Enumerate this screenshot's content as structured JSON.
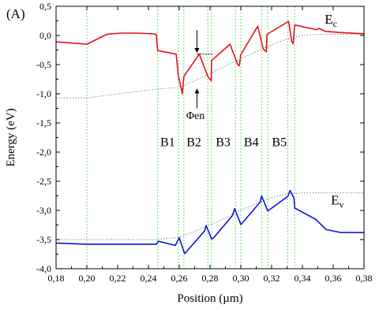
{
  "chart_data": {
    "type": "line",
    "panel_label": "(A)",
    "xlabel": "Position (µm)",
    "ylabel": "Energy (eV)",
    "xlim": [
      0.18,
      0.38
    ],
    "ylim": [
      -4.0,
      0.5
    ],
    "xticks": [
      "0,18",
      "0,20",
      "0,22",
      "0,24",
      "0,26",
      "0,28",
      "0,30",
      "0,32",
      "0,34",
      "0,36",
      "0,38"
    ],
    "xtick_values": [
      0.18,
      0.2,
      0.22,
      0.24,
      0.26,
      0.28,
      0.3,
      0.32,
      0.34,
      0.36,
      0.38
    ],
    "yticks": [
      "0,5",
      "0,0",
      "-0,5",
      "-1,0",
      "-1,5",
      "-2,0",
      "-2,5",
      "-3,0",
      "-3,5",
      "-4,0"
    ],
    "ytick_values": [
      0.5,
      0.0,
      -0.5,
      -1.0,
      -1.5,
      -2.0,
      -2.5,
      -3.0,
      -3.5,
      -4.0
    ],
    "grid": false,
    "series": [
      {
        "name": "Ec",
        "color": "#e8101c",
        "style": "solid",
        "points": [
          [
            0.18,
            -0.11
          ],
          [
            0.2,
            -0.15
          ],
          [
            0.213,
            0.02
          ],
          [
            0.222,
            0.04
          ],
          [
            0.232,
            0.04
          ],
          [
            0.242,
            0.03
          ],
          [
            0.245,
            0.02
          ],
          [
            0.246,
            -0.26
          ],
          [
            0.258,
            -0.32
          ],
          [
            0.2595,
            -0.7
          ],
          [
            0.262,
            -1.0
          ],
          [
            0.263,
            -0.7
          ],
          [
            0.273,
            -0.32
          ],
          [
            0.2785,
            -0.7
          ],
          [
            0.2808,
            -0.78
          ],
          [
            0.281,
            -0.43
          ],
          [
            0.293,
            -0.15
          ],
          [
            0.298,
            -0.5
          ],
          [
            0.299,
            -0.52
          ],
          [
            0.3,
            -0.33
          ],
          [
            0.311,
            0.16
          ],
          [
            0.3145,
            -0.23
          ],
          [
            0.3165,
            -0.28
          ],
          [
            0.317,
            0.02
          ],
          [
            0.331,
            0.24
          ],
          [
            0.333,
            -0.1
          ],
          [
            0.334,
            -0.14
          ],
          [
            0.335,
            0.18
          ],
          [
            0.349,
            0.1
          ],
          [
            0.351,
            0.12
          ],
          [
            0.355,
            0.07
          ],
          [
            0.365,
            0.05
          ],
          [
            0.38,
            0.03
          ]
        ]
      },
      {
        "name": "Ev",
        "color": "#1010e0",
        "style": "solid",
        "points": [
          [
            0.18,
            -3.56
          ],
          [
            0.2,
            -3.58
          ],
          [
            0.215,
            -3.58
          ],
          [
            0.245,
            -3.58
          ],
          [
            0.2465,
            -3.53
          ],
          [
            0.2575,
            -3.6
          ],
          [
            0.26,
            -3.47
          ],
          [
            0.2635,
            -3.74
          ],
          [
            0.264,
            -3.73
          ],
          [
            0.2765,
            -3.35
          ],
          [
            0.2775,
            -3.26
          ],
          [
            0.281,
            -3.49
          ],
          [
            0.282,
            -3.48
          ],
          [
            0.2945,
            -3.09
          ],
          [
            0.296,
            -2.97
          ],
          [
            0.3,
            -3.24
          ],
          [
            0.3005,
            -3.23
          ],
          [
            0.3125,
            -2.86
          ],
          [
            0.3135,
            -2.75
          ],
          [
            0.3175,
            -3.01
          ],
          [
            0.318,
            -3.0
          ],
          [
            0.3305,
            -2.76
          ],
          [
            0.332,
            -2.66
          ],
          [
            0.3345,
            -2.79
          ],
          [
            0.335,
            -2.96
          ],
          [
            0.347,
            -3.13
          ],
          [
            0.3485,
            -3.15
          ],
          [
            0.3555,
            -3.33
          ],
          [
            0.365,
            -3.38
          ],
          [
            0.38,
            -3.38
          ]
        ]
      },
      {
        "name": "",
        "color": "#555555",
        "style": "dotted",
        "points": [
          [
            0.18,
            -1.07
          ],
          [
            0.2,
            -1.07
          ],
          [
            0.215,
            -1.02
          ],
          [
            0.23,
            -0.97
          ],
          [
            0.245,
            -0.92
          ],
          [
            0.26,
            -0.89
          ],
          [
            0.27,
            -0.78
          ],
          [
            0.28,
            -0.65
          ],
          [
            0.29,
            -0.52
          ],
          [
            0.3,
            -0.4
          ],
          [
            0.31,
            -0.28
          ],
          [
            0.32,
            -0.16
          ],
          [
            0.33,
            -0.06
          ],
          [
            0.34,
            0.0
          ],
          [
            0.35,
            0.02
          ],
          [
            0.38,
            0.02
          ]
        ]
      },
      {
        "name": "",
        "color": "#555555",
        "style": "dotted",
        "points": [
          [
            0.18,
            -3.5
          ],
          [
            0.2,
            -3.5
          ],
          [
            0.245,
            -3.5
          ],
          [
            0.26,
            -3.46
          ],
          [
            0.27,
            -3.36
          ],
          [
            0.28,
            -3.25
          ],
          [
            0.29,
            -3.13
          ],
          [
            0.3,
            -3.0
          ],
          [
            0.31,
            -2.88
          ],
          [
            0.32,
            -2.78
          ],
          [
            0.33,
            -2.72
          ],
          [
            0.34,
            -2.7
          ],
          [
            0.38,
            -2.7
          ]
        ]
      }
    ],
    "vertical_lines": [
      0.2,
      0.246,
      0.2595,
      0.263,
      0.2785,
      0.281,
      0.2965,
      0.3,
      0.3135,
      0.3175,
      0.3305,
      0.335
    ],
    "vertical_line_color": "#66dd66",
    "band_labels": [
      {
        "text": "B1",
        "x": 0.2525
      },
      {
        "text": "B2",
        "x": 0.2695
      },
      {
        "text": "B3",
        "x": 0.2885
      },
      {
        "text": "B4",
        "x": 0.3068
      },
      {
        "text": "B5",
        "x": 0.325
      }
    ],
    "band_label_y": -1.9,
    "curve_labels": {
      "ec": {
        "main": "E",
        "sub": "c",
        "x": 0.3545,
        "y": 0.2
      },
      "ev": {
        "main": "E",
        "sub": "v",
        "x": 0.3585,
        "y": -2.9
      }
    },
    "annotation": {
      "text": "Φen",
      "x": 0.2645,
      "y": -1.43,
      "arrow_x": 0.2715,
      "ref_line": {
        "x1": 0.2715,
        "x2": 0.282,
        "y": -0.32
      },
      "top_arrow": {
        "y_from": 0.09,
        "y_to": -0.29
      },
      "bottom_arrow": {
        "y_from": -1.25,
        "y_to": -0.92
      }
    }
  }
}
